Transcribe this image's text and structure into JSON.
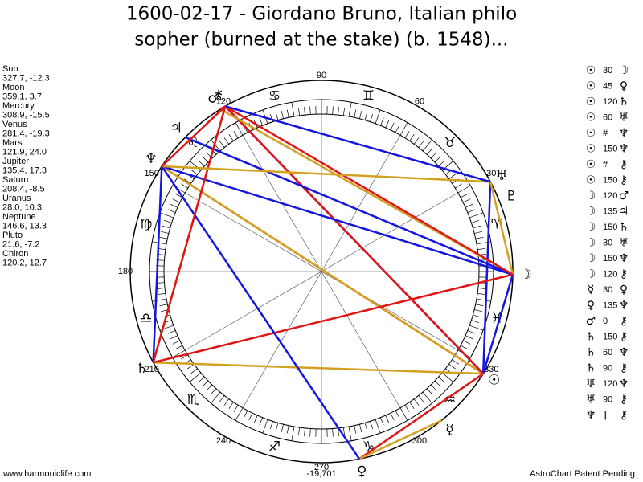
{
  "header": {
    "title_lines": [
      "1600-02-17 - Giordano Bruno, Italian philo",
      "sopher (burned at the stake) (b. 1548)..."
    ]
  },
  "planets": [
    {
      "name": "Sun",
      "position": "327.7, -12.3",
      "glyph": "☉"
    },
    {
      "name": "Moon",
      "position": "359.1, 3.7",
      "glyph": "☽"
    },
    {
      "name": "Mercury",
      "position": "308.9, -15.5",
      "glyph": "☿"
    },
    {
      "name": "Venus",
      "position": "281.4, -19.3",
      "glyph": "♀"
    },
    {
      "name": "Mars",
      "position": "121.9, 24.0",
      "glyph": "♂"
    },
    {
      "name": "Jupiter",
      "position": "135.4, 17.3",
      "glyph": "♃"
    },
    {
      "name": "Saturn",
      "position": "208.4, -8.5",
      "glyph": "♄"
    },
    {
      "name": "Uranus",
      "position": "28.0, 10.3",
      "glyph": "♅"
    },
    {
      "name": "Neptune",
      "position": "146.6, 13.3",
      "glyph": "♆"
    },
    {
      "name": "Pluto",
      "position": "21.6, -7.2",
      "glyph": "♇"
    },
    {
      "name": "Chiron",
      "position": "120.2, 12.7",
      "glyph": "⚷"
    }
  ],
  "aspects": [
    {
      "a": "☉",
      "aspect": 30,
      "b": "☽"
    },
    {
      "a": "☉",
      "aspect": 45,
      "b": "♀"
    },
    {
      "a": "☉",
      "aspect": 120,
      "b": "♄"
    },
    {
      "a": "☉",
      "aspect": 60,
      "b": "♅"
    },
    {
      "a": "☉",
      "aspect": "#",
      "b": "♆"
    },
    {
      "a": "☉",
      "aspect": 150,
      "b": "♆"
    },
    {
      "a": "☉",
      "aspect": "#",
      "b": "⚷"
    },
    {
      "a": "☉",
      "aspect": 150,
      "b": "⚷"
    },
    {
      "a": "☽",
      "aspect": 120,
      "b": "♂"
    },
    {
      "a": "☽",
      "aspect": 135,
      "b": "♃"
    },
    {
      "a": "☽",
      "aspect": 150,
      "b": "♄"
    },
    {
      "a": "☽",
      "aspect": 30,
      "b": "♅"
    },
    {
      "a": "☽",
      "aspect": 150,
      "b": "♆"
    },
    {
      "a": "☽",
      "aspect": 120,
      "b": "⚷"
    },
    {
      "a": "☿",
      "aspect": 30,
      "b": "♀"
    },
    {
      "a": "♀",
      "aspect": 135,
      "b": "♆"
    },
    {
      "a": "♂",
      "aspect": 0,
      "b": "⚷"
    },
    {
      "a": "♄",
      "aspect": 150,
      "b": "⚷"
    },
    {
      "a": "♄",
      "aspect": 60,
      "b": "♆"
    },
    {
      "a": "♄",
      "aspect": 90,
      "b": "⚷"
    },
    {
      "a": "♅",
      "aspect": 120,
      "b": "♆"
    },
    {
      "a": "♅",
      "aspect": 90,
      "b": "⚷"
    },
    {
      "a": "♆",
      "aspect": "∥",
      "b": "⚷"
    }
  ],
  "zodiac": [
    "♈",
    "♉",
    "♊",
    "♋",
    "♌",
    "♍",
    "♎",
    "♏",
    "♐",
    "♑",
    "♒",
    "♓"
  ],
  "degree_labels": [
    30,
    60,
    90,
    120,
    150,
    180,
    210,
    240,
    270,
    300,
    330
  ],
  "center_value": "-19,701",
  "footer": {
    "left": "www.harmoniclife.com",
    "right": "AstroChart Patent Pending"
  }
}
